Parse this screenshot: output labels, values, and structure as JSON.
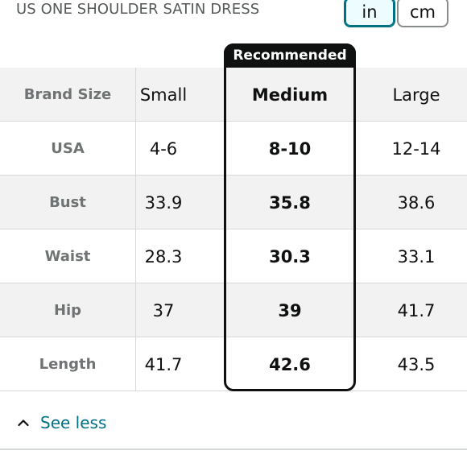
{
  "product": {
    "title": "US ONE SHOULDER SATIN DRESS"
  },
  "units": {
    "in": "in",
    "cm": "cm",
    "selected": "in"
  },
  "recommended_label": "Recommended",
  "table": {
    "headers": [
      "Brand Size",
      "Small",
      "Medium",
      "Large"
    ],
    "rows": [
      {
        "label": "USA",
        "values": [
          "4-6",
          "8-10",
          "12-14"
        ]
      },
      {
        "label": "Bust",
        "values": [
          "33.9",
          "35.8",
          "38.6"
        ]
      },
      {
        "label": "Waist",
        "values": [
          "28.3",
          "30.3",
          "33.1"
        ]
      },
      {
        "label": "Hip",
        "values": [
          "37",
          "39",
          "41.7"
        ]
      },
      {
        "label": "Length",
        "values": [
          "41.7",
          "42.6",
          "43.5"
        ]
      }
    ]
  },
  "see_less": {
    "label": "See less",
    "icon": "chevron-up-icon"
  },
  "colors": {
    "accent": "#007185",
    "shade": "#f2f2f2",
    "text": "#0f1111"
  }
}
